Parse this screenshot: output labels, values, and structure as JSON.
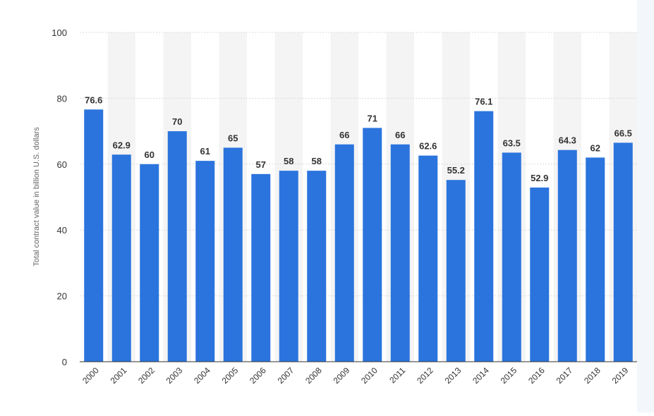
{
  "chart_data": {
    "type": "bar",
    "categories": [
      "2000",
      "2001",
      "2002",
      "2003",
      "2004",
      "2005",
      "2006",
      "2007",
      "2008",
      "2009",
      "2010",
      "2011",
      "2012",
      "2013",
      "2014",
      "2015",
      "2016",
      "2017",
      "2018",
      "2019"
    ],
    "values": [
      76.6,
      62.9,
      60,
      70,
      61,
      65,
      57,
      58,
      58,
      66,
      71,
      66,
      62.6,
      55.2,
      76.1,
      63.5,
      52.9,
      64.3,
      62,
      66.5
    ],
    "data_labels": [
      "76.6",
      "62.9",
      "60",
      "70",
      "61",
      "65",
      "57",
      "58",
      "58",
      "66",
      "71",
      "66",
      "62.6",
      "55.2",
      "76.1",
      "63.5",
      "52.9",
      "64.3",
      "62",
      "66.5"
    ],
    "title": "",
    "xlabel": "",
    "ylabel": "Total contract value in billion U.S. dollars",
    "ylim": [
      0,
      100
    ],
    "yticks": [
      0,
      20,
      40,
      60,
      80,
      100
    ],
    "grid": true,
    "colors": {
      "bar": "#2b74dd",
      "band": "#f4f4f4",
      "grid": "#d9d9d9"
    }
  }
}
